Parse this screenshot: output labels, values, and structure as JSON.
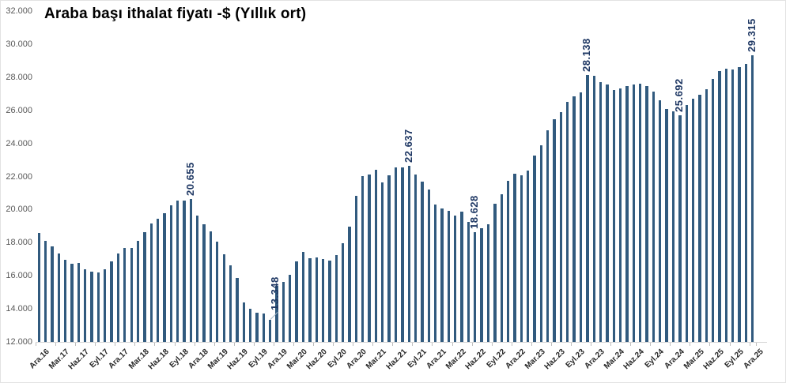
{
  "chart_data": {
    "type": "bar",
    "title": "Araba başı ithalat fiyatı -$ (Yıllık ort)",
    "grid": false,
    "legend": false,
    "bar_color": "#315a7e",
    "data_label_color": "#1f3864",
    "ylim": [
      12000,
      32000
    ],
    "ytick_step": 2000,
    "ytick_labels_top_down": [
      "32.000",
      "30.000",
      "28.000",
      "26.000",
      "24.000",
      "22.000",
      "20.000",
      "18.000",
      "16.000",
      "14.000",
      "12.000"
    ],
    "xtick_every": 3,
    "categories": [
      "Ara.16",
      "Oca.17",
      "Şub.17",
      "Mar.17",
      "Nis.17",
      "May.17",
      "Haz.17",
      "Tem.17",
      "Ağu.17",
      "Eyl.17",
      "Eki.17",
      "Kas.17",
      "Ara.17",
      "Oca.18",
      "Şub.18",
      "Mar.18",
      "Nis.18",
      "May.18",
      "Haz.18",
      "Tem.18",
      "Ağu.18",
      "Eyl.18",
      "Eki.18",
      "Kas.18",
      "Ara.18",
      "Oca.19",
      "Şub.19",
      "Mar.19",
      "Nis.19",
      "May.19",
      "Haz.19",
      "Tem.19",
      "Ağu.19",
      "Eyl.19",
      "Eki.19",
      "Kas.19",
      "Ara.19",
      "Oca.20",
      "Şub.20",
      "Mar.20",
      "Nis.20",
      "May.20",
      "Haz.20",
      "Tem.20",
      "Ağu.20",
      "Eyl.20",
      "Eki.20",
      "Kas.20",
      "Ara.20",
      "Oca.21",
      "Şub.21",
      "Mar.21",
      "Nis.21",
      "May.21",
      "Haz.21",
      "Tem.21",
      "Ağu.21",
      "Eyl.21",
      "Eki.21",
      "Kas.21",
      "Ara.21",
      "Oca.22",
      "Şub.22",
      "Mar.22",
      "Nis.22",
      "May.22",
      "Haz.22",
      "Tem.22",
      "Ağu.22",
      "Eyl.22",
      "Eki.22",
      "Kas.22",
      "Ara.22",
      "Oca.23",
      "Şub.23",
      "Mar.23",
      "Nis.23",
      "May.23",
      "Haz.23",
      "Tem.23",
      "Ağu.23",
      "Eyl.23",
      "Eki.23",
      "Kas.23",
      "Ara.23",
      "Oca.24",
      "Şub.24",
      "Mar.24",
      "Nis.24",
      "May.24",
      "Haz.24",
      "Tem.24",
      "Ağu.24",
      "Eyl.24",
      "Eki.24",
      "Kas.24",
      "Ara.24",
      "Oca.25",
      "Şub.25",
      "Mar.25",
      "Nis.25",
      "May.25",
      "Haz.25",
      "Tem.25",
      "Ağu.25",
      "Eyl.25",
      "Eki.25",
      "Kas.25",
      "Ara.25"
    ],
    "values": [
      18605,
      18095,
      17795,
      17350,
      16950,
      16750,
      16760,
      16415,
      16240,
      16225,
      16395,
      16855,
      17350,
      17700,
      17670,
      18095,
      18655,
      19155,
      19450,
      19760,
      20240,
      20525,
      20525,
      20655,
      19620,
      19110,
      18680,
      18080,
      17320,
      16620,
      15870,
      14365,
      14000,
      13775,
      13700,
      13348,
      15395,
      15605,
      16080,
      16870,
      17430,
      17060,
      17095,
      17015,
      16940,
      17250,
      17985,
      18965,
      20845,
      22015,
      22110,
      22395,
      21665,
      22050,
      22555,
      22555,
      22637,
      22125,
      21680,
      21205,
      20300,
      20060,
      19905,
      19635,
      19890,
      19255,
      18628,
      18870,
      19110,
      20350,
      20950,
      21745,
      22175,
      22060,
      22335,
      23285,
      23890,
      24810,
      25450,
      25880,
      26520,
      26825,
      27080,
      28138,
      28095,
      27700,
      27570,
      27225,
      27300,
      27490,
      27570,
      27620,
      27480,
      27150,
      26590,
      26060,
      25950,
      25692,
      26320,
      26700,
      26950,
      27260,
      27875,
      28375,
      28515,
      28450,
      28630,
      28810,
      29315
    ],
    "data_labels": [
      {
        "index": 23,
        "text": "20.655"
      },
      {
        "index": 35,
        "text": "13.348",
        "leader": true
      },
      {
        "index": 56,
        "text": "22.637"
      },
      {
        "index": 66,
        "text": "18.628"
      },
      {
        "index": 83,
        "text": "28.138"
      },
      {
        "index": 97,
        "text": "25.692"
      },
      {
        "index": 108,
        "text": "29.315"
      }
    ]
  }
}
